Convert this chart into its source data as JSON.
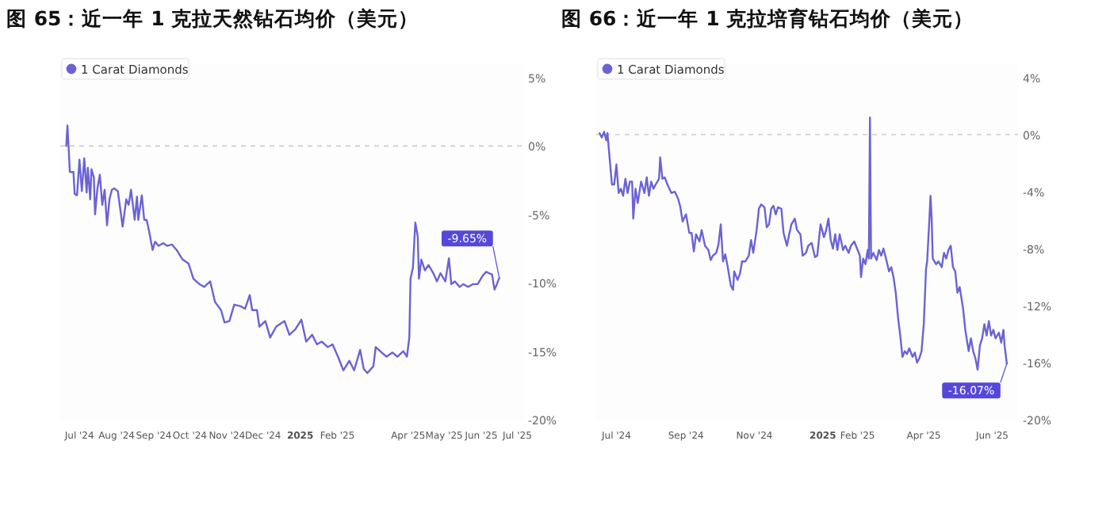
{
  "chart_data": [
    {
      "type": "line",
      "title": "图 65：近一年 1 克拉天然钻石均价（美元）",
      "legend": "top left",
      "x": [
        "2024-06-20",
        "2024-06-21",
        "2024-06-22",
        "2024-06-23",
        "2024-06-26",
        "2024-06-27",
        "2024-06-29",
        "2024-07-01",
        "2024-07-03",
        "2024-07-05",
        "2024-07-07",
        "2024-07-08",
        "2024-07-10",
        "2024-07-11",
        "2024-07-13",
        "2024-07-14",
        "2024-07-16",
        "2024-07-18",
        "2024-07-20",
        "2024-07-22",
        "2024-07-24",
        "2024-07-26",
        "2024-07-28",
        "2024-07-30",
        "2024-08-02",
        "2024-08-06",
        "2024-08-09",
        "2024-08-11",
        "2024-08-13",
        "2024-08-16",
        "2024-08-18",
        "2024-08-19",
        "2024-08-22",
        "2024-08-24",
        "2024-08-26",
        "2024-08-28",
        "2024-08-31",
        "2024-09-02",
        "2024-09-05",
        "2024-09-09",
        "2024-09-12",
        "2024-09-16",
        "2024-09-20",
        "2024-09-25",
        "2024-09-30",
        "2024-10-04",
        "2024-10-09",
        "2024-10-13",
        "2024-10-18",
        "2024-10-22",
        "2024-10-27",
        "2024-10-30",
        "2024-11-03",
        "2024-11-07",
        "2024-11-12",
        "2024-11-16",
        "2024-11-20",
        "2024-11-22",
        "2024-11-26",
        "2024-11-28",
        "2024-12-03",
        "2024-12-07",
        "2024-12-12",
        "2024-12-19",
        "2024-12-23",
        "2024-12-28",
        "2025-01-02",
        "2025-01-06",
        "2025-01-11",
        "2025-01-15",
        "2025-01-19",
        "2025-01-24",
        "2025-01-28",
        "2025-02-02",
        "2025-02-06",
        "2025-02-11",
        "2025-02-15",
        "2025-02-20",
        "2025-02-23",
        "2025-02-26",
        "2025-03-03",
        "2025-03-05",
        "2025-03-10",
        "2025-03-14",
        "2025-03-19",
        "2025-03-23",
        "2025-03-28",
        "2025-03-31",
        "2025-04-02",
        "2025-04-03",
        "2025-04-05",
        "2025-04-07",
        "2025-04-09",
        "2025-04-10",
        "2025-04-12",
        "2025-04-15",
        "2025-04-18",
        "2025-04-22",
        "2025-04-25",
        "2025-04-28",
        "2025-05-02",
        "2025-05-05",
        "2025-05-07",
        "2025-05-10",
        "2025-05-14",
        "2025-05-17",
        "2025-05-21",
        "2025-05-25",
        "2025-05-29",
        "2025-06-02",
        "2025-06-05",
        "2025-06-10",
        "2025-06-12",
        "2025-06-14",
        "2025-06-16"
      ],
      "series": [
        {
          "name": "1 Carat Diamonds",
          "color": "#6b63d4",
          "values": [
            0,
            1.5,
            -0.2,
            -1.9,
            -1.9,
            -3.5,
            -3.6,
            -1.0,
            -3.3,
            -0.9,
            -3.4,
            -1.6,
            -3.9,
            -1.7,
            -2.3,
            -5.0,
            -3.1,
            -2.1,
            -4.3,
            -3.2,
            -5.8,
            -3.9,
            -3.2,
            -3.1,
            -3.3,
            -5.9,
            -3.9,
            -4.3,
            -3.2,
            -5.4,
            -3.7,
            -5.4,
            -3.6,
            -5.4,
            -5.4,
            -6.2,
            -7.6,
            -7.0,
            -7.3,
            -7.1,
            -7.3,
            -7.2,
            -7.6,
            -8.3,
            -8.6,
            -9.7,
            -10.1,
            -10.3,
            -9.9,
            -11.4,
            -12.0,
            -12.9,
            -12.8,
            -11.6,
            -11.7,
            -11.9,
            -10.9,
            -12.0,
            -12.0,
            -13.2,
            -12.8,
            -14.0,
            -13.2,
            -12.8,
            -13.8,
            -13.4,
            -12.7,
            -14.3,
            -13.8,
            -14.5,
            -14.3,
            -14.7,
            -14.5,
            -15.5,
            -16.4,
            -15.7,
            -16.4,
            -14.9,
            -16.3,
            -16.6,
            -16.1,
            -14.7,
            -15.1,
            -15.4,
            -15.1,
            -15.4,
            -15.0,
            -15.4,
            -14.0,
            -9.7,
            -8.9,
            -5.6,
            -6.6,
            -9.7,
            -8.3,
            -9.1,
            -8.7,
            -9.3,
            -9.9,
            -9.3,
            -9.9,
            -8.2,
            -10.1,
            -9.9,
            -10.3,
            -10.1,
            -10.3,
            -10.1,
            -10.1,
            -9.5,
            -9.2,
            -9.4,
            -10.5,
            -10.1,
            -9.65
          ]
        }
      ],
      "xlim": [
        "2024-06-15",
        "2025-07-06"
      ],
      "ylim": [
        -20,
        5
      ],
      "xticks": [
        {
          "value": "2024-07-01",
          "label": "Jul '24"
        },
        {
          "value": "2024-08-01",
          "label": "Aug '24"
        },
        {
          "value": "2024-09-01",
          "label": "Sep '24"
        },
        {
          "value": "2024-10-01",
          "label": "Oct '24"
        },
        {
          "value": "2024-11-01",
          "label": "Nov '24"
        },
        {
          "value": "2024-12-01",
          "label": "Dec '24"
        },
        {
          "value": "2025-01-01",
          "label": "2025"
        },
        {
          "value": "2025-02-01",
          "label": "Feb '25"
        },
        {
          "value": "2025-04-01",
          "label": "Apr '25"
        },
        {
          "value": "2025-05-01",
          "label": "May '25"
        },
        {
          "value": "2025-06-01",
          "label": "Jun '25"
        },
        {
          "value": "2025-07-01",
          "label": "Jul '25"
        }
      ],
      "yticks": [
        {
          "value": -20,
          "label": "-20%"
        },
        {
          "value": -15,
          "label": "-15%"
        },
        {
          "value": -10,
          "label": "-10%"
        },
        {
          "value": -5,
          "label": "-5%"
        },
        {
          "value": 0,
          "label": "0%"
        },
        {
          "value": 5,
          "label": "5%"
        }
      ],
      "ref_lines": [
        {
          "axis": "y",
          "value": 0,
          "color": "#cccccc",
          "line_style": "dashed"
        }
      ],
      "annotations": [
        {
          "text": "-9.65%",
          "x": "2025-06-16",
          "y": -9.65
        }
      ]
    },
    {
      "type": "line",
      "title": "图 66：近一年 1 克拉培育钻石均价（美元）",
      "legend": "top left",
      "x": [
        "2024-06-16",
        "2024-06-18",
        "2024-06-20",
        "2024-06-22",
        "2024-06-23",
        "2024-06-25",
        "2024-06-27",
        "2024-06-29",
        "2024-07-01",
        "2024-07-03",
        "2024-07-05",
        "2024-07-07",
        "2024-07-09",
        "2024-07-11",
        "2024-07-13",
        "2024-07-15",
        "2024-07-16",
        "2024-07-18",
        "2024-07-20",
        "2024-07-22",
        "2024-07-23",
        "2024-07-26",
        "2024-07-28",
        "2024-07-30",
        "2024-08-01",
        "2024-08-03",
        "2024-08-05",
        "2024-08-08",
        "2024-08-09",
        "2024-08-11",
        "2024-08-13",
        "2024-08-16",
        "2024-08-19",
        "2024-08-22",
        "2024-08-25",
        "2024-08-27",
        "2024-08-29",
        "2024-09-01",
        "2024-09-04",
        "2024-09-06",
        "2024-09-08",
        "2024-09-10",
        "2024-09-13",
        "2024-09-15",
        "2024-09-18",
        "2024-09-21",
        "2024-09-23",
        "2024-09-25",
        "2024-09-28",
        "2024-09-30",
        "2024-10-02",
        "2024-10-04",
        "2024-10-06",
        "2024-10-08",
        "2024-10-11",
        "2024-10-13",
        "2024-10-14",
        "2024-10-17",
        "2024-10-19",
        "2024-10-21",
        "2024-10-24",
        "2024-10-27",
        "2024-10-29",
        "2024-10-31",
        "2024-11-03",
        "2024-11-05",
        "2024-11-07",
        "2024-11-10",
        "2024-11-12",
        "2024-11-14",
        "2024-11-16",
        "2024-11-18",
        "2024-11-20",
        "2024-11-22",
        "2024-11-25",
        "2024-11-27",
        "2024-11-30",
        "2024-12-02",
        "2024-12-04",
        "2024-12-07",
        "2024-12-09",
        "2024-12-12",
        "2024-12-14",
        "2024-12-17",
        "2024-12-19",
        "2024-12-22",
        "2024-12-25",
        "2024-12-27",
        "2024-12-30",
        "2025-01-02",
        "2025-01-04",
        "2025-01-06",
        "2025-01-08",
        "2025-01-10",
        "2025-01-12",
        "2025-01-14",
        "2025-01-16",
        "2025-01-19",
        "2025-01-21",
        "2025-01-24",
        "2025-01-26",
        "2025-01-29",
        "2025-02-01",
        "2025-02-03",
        "2025-02-04",
        "2025-02-06",
        "2025-02-08",
        "2025-02-10",
        "2025-02-11",
        "2025-02-12",
        "2025-02-13",
        "2025-02-15",
        "2025-02-18",
        "2025-02-20",
        "2025-02-22",
        "2025-02-24",
        "2025-02-26",
        "2025-03-01",
        "2025-03-03",
        "2025-03-05",
        "2025-03-07",
        "2025-03-09",
        "2025-03-11",
        "2025-03-13",
        "2025-03-15",
        "2025-03-17",
        "2025-03-19",
        "2025-03-22",
        "2025-03-24",
        "2025-03-26",
        "2025-03-28",
        "2025-03-30",
        "2025-04-01",
        "2025-04-03",
        "2025-04-04",
        "2025-04-06",
        "2025-04-07",
        "2025-04-08",
        "2025-04-09",
        "2025-04-12",
        "2025-04-14",
        "2025-04-17",
        "2025-04-19",
        "2025-04-21",
        "2025-04-23",
        "2025-04-25",
        "2025-04-27",
        "2025-04-29",
        "2025-05-01",
        "2025-05-03",
        "2025-05-06",
        "2025-05-08",
        "2025-05-11",
        "2025-05-13",
        "2025-05-15",
        "2025-05-17",
        "2025-05-19",
        "2025-05-21",
        "2025-05-23",
        "2025-05-25",
        "2025-05-27",
        "2025-05-29",
        "2025-05-31",
        "2025-06-02",
        "2025-06-04",
        "2025-06-07",
        "2025-06-09",
        "2025-06-11",
        "2025-06-12",
        "2025-06-14"
      ],
      "series": [
        {
          "name": "1 Carat Diamonds",
          "color": "#6b63d4",
          "values": [
            0.1,
            -0.2,
            0.2,
            -0.4,
            0.1,
            -1.7,
            -3.5,
            -3.5,
            -2.1,
            -4.1,
            -3.8,
            -4.3,
            -3.1,
            -4.1,
            -3.3,
            -3.3,
            -5.9,
            -3.8,
            -4.8,
            -3.8,
            -3.3,
            -4.1,
            -3.0,
            -4.3,
            -3.3,
            -3.8,
            -3.5,
            -3.1,
            -1.6,
            -3.1,
            -3.0,
            -3.6,
            -4.1,
            -4.0,
            -4.5,
            -5.1,
            -6.1,
            -5.6,
            -6.9,
            -6.9,
            -8.2,
            -7.0,
            -7.5,
            -6.7,
            -7.8,
            -8.1,
            -8.8,
            -8.5,
            -8.3,
            -7.7,
            -6.3,
            -8.9,
            -8.4,
            -9.2,
            -10.6,
            -10.9,
            -9.6,
            -10.2,
            -9.8,
            -8.9,
            -8.9,
            -8.5,
            -7.4,
            -8.3,
            -6.7,
            -5.2,
            -4.9,
            -5.1,
            -6.5,
            -6.3,
            -5.2,
            -5.0,
            -5.6,
            -5.1,
            -5.2,
            -6.9,
            -7.8,
            -7.0,
            -6.3,
            -5.9,
            -6.7,
            -7.0,
            -8.5,
            -8.3,
            -7.8,
            -7.6,
            -8.6,
            -8.5,
            -6.3,
            -7.2,
            -6.7,
            -5.9,
            -7.4,
            -8.0,
            -7.0,
            -8.1,
            -7.0,
            -8.1,
            -7.8,
            -8.3,
            -7.8,
            -7.5,
            -8.1,
            -8.5,
            -10.0,
            -8.7,
            -9.1,
            -8.1,
            -8.7,
            1.2,
            -8.7,
            -8.3,
            -8.8,
            -8.1,
            -8.5,
            -8.0,
            -8.6,
            -9.6,
            -9.3,
            -10.0,
            -11.1,
            -12.8,
            -14.1,
            -15.6,
            -15.2,
            -15.4,
            -15.0,
            -15.6,
            -15.3,
            -16.0,
            -15.7,
            -15.2,
            -13.3,
            -9.4,
            -8.9,
            -5.9,
            -4.3,
            -5.9,
            -8.7,
            -9.1,
            -8.9,
            -9.3,
            -8.3,
            -8.7,
            -8.1,
            -7.8,
            -9.3,
            -9.6,
            -11.1,
            -10.7,
            -12.2,
            -13.7,
            -15.2,
            -14.3,
            -15.2,
            -15.7,
            -16.5,
            -14.8,
            -14.3,
            -13.3,
            -14.1,
            -13.1,
            -14.1,
            -13.7,
            -14.3,
            -13.9,
            -14.6,
            -13.7,
            -14.8,
            -16.07
          ]
        }
      ],
      "xlim": [
        "2024-06-13",
        "2025-06-24"
      ],
      "ylim": [
        -20,
        4
      ],
      "xticks": [
        {
          "value": "2024-07-01",
          "label": "Jul '24"
        },
        {
          "value": "2024-09-01",
          "label": "Sep '24"
        },
        {
          "value": "2024-11-01",
          "label": "Nov '24"
        },
        {
          "value": "2025-01-01",
          "label": "2025"
        },
        {
          "value": "2025-02-01",
          "label": "Feb '25"
        },
        {
          "value": "2025-04-01",
          "label": "Apr '25"
        },
        {
          "value": "2025-06-01",
          "label": "Jun '25"
        }
      ],
      "yticks": [
        {
          "value": -20,
          "label": "-20%"
        },
        {
          "value": -16,
          "label": "-16%"
        },
        {
          "value": -12,
          "label": "-12%"
        },
        {
          "value": -8,
          "label": "-8%"
        },
        {
          "value": -4,
          "label": "-4%"
        },
        {
          "value": 0,
          "label": "0%"
        },
        {
          "value": 4,
          "label": "4%"
        }
      ],
      "ref_lines": [
        {
          "axis": "y",
          "value": 0,
          "color": "#cccccc",
          "line_style": "dashed"
        }
      ],
      "annotations": [
        {
          "text": "-16.07%",
          "x": "2025-06-14",
          "y": -16.07
        }
      ]
    }
  ]
}
